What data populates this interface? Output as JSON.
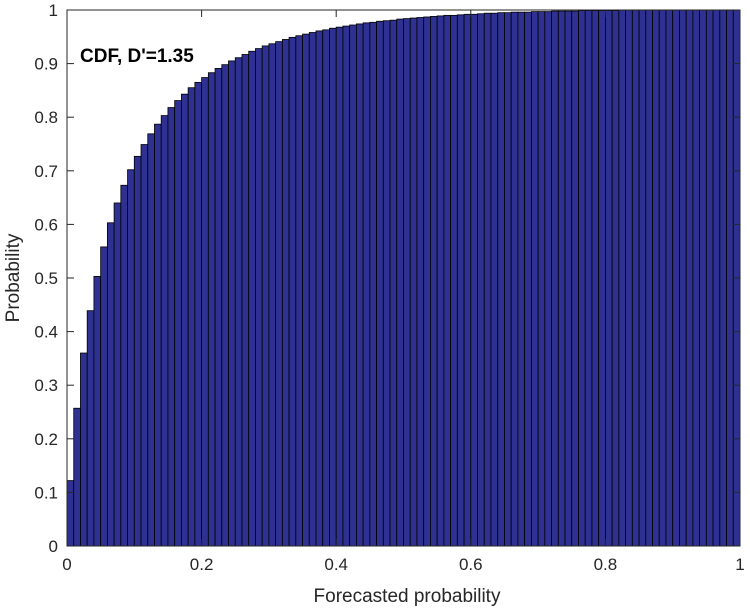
{
  "chart_data": {
    "type": "bar",
    "annotation": "CDF, D'=1.35",
    "xlabel": "Forecasted probability",
    "ylabel": "Probability",
    "xlim": [
      0,
      1
    ],
    "ylim": [
      0,
      1
    ],
    "x_ticks": [
      "0",
      "0.2",
      "0.4",
      "0.6",
      "0.8",
      "1"
    ],
    "y_ticks": [
      "0",
      "0.1",
      "0.2",
      "0.3",
      "0.4",
      "0.5",
      "0.6",
      "0.7",
      "0.8",
      "0.9",
      "1"
    ],
    "grid": false,
    "bar_color": "#2e3192",
    "bar_edge_color": "#000000",
    "bin_width": 0.01,
    "x": [
      0.005,
      0.015,
      0.025,
      0.035,
      0.045,
      0.055,
      0.065,
      0.075,
      0.085,
      0.095,
      0.105,
      0.115,
      0.125,
      0.135,
      0.145,
      0.155,
      0.165,
      0.175,
      0.185,
      0.195,
      0.205,
      0.215,
      0.225,
      0.235,
      0.245,
      0.255,
      0.265,
      0.275,
      0.285,
      0.295,
      0.305,
      0.315,
      0.325,
      0.335,
      0.345,
      0.355,
      0.365,
      0.375,
      0.385,
      0.395,
      0.405,
      0.415,
      0.425,
      0.435,
      0.445,
      0.455,
      0.465,
      0.475,
      0.485,
      0.495,
      0.505,
      0.515,
      0.525,
      0.535,
      0.545,
      0.555,
      0.565,
      0.575,
      0.585,
      0.595,
      0.605,
      0.615,
      0.625,
      0.635,
      0.645,
      0.655,
      0.665,
      0.675,
      0.685,
      0.695,
      0.705,
      0.715,
      0.725,
      0.735,
      0.745,
      0.755,
      0.765,
      0.775,
      0.785,
      0.795,
      0.805,
      0.815,
      0.825,
      0.835,
      0.845,
      0.855,
      0.865,
      0.875,
      0.885,
      0.895,
      0.905,
      0.915,
      0.925,
      0.935,
      0.945,
      0.955,
      0.965,
      0.975,
      0.985,
      0.995
    ],
    "values": [
      0.122,
      0.257,
      0.36,
      0.439,
      0.503,
      0.558,
      0.603,
      0.64,
      0.673,
      0.702,
      0.727,
      0.749,
      0.769,
      0.787,
      0.803,
      0.818,
      0.831,
      0.843,
      0.855,
      0.865,
      0.874,
      0.883,
      0.891,
      0.898,
      0.905,
      0.911,
      0.917,
      0.923,
      0.928,
      0.933,
      0.937,
      0.941,
      0.945,
      0.949,
      0.952,
      0.955,
      0.958,
      0.961,
      0.963,
      0.966,
      0.968,
      0.97,
      0.972,
      0.974,
      0.976,
      0.977,
      0.979,
      0.98,
      0.981,
      0.983,
      0.984,
      0.985,
      0.986,
      0.987,
      0.988,
      0.989,
      0.99,
      0.99,
      0.991,
      0.992,
      0.992,
      0.993,
      0.994,
      0.994,
      0.995,
      0.995,
      0.996,
      0.996,
      0.996,
      0.997,
      0.997,
      0.997,
      0.998,
      0.998,
      0.998,
      0.998,
      0.999,
      0.999,
      0.999,
      0.999,
      0.999,
      0.999,
      1.0,
      1.0,
      1.0,
      1.0,
      1.0,
      1.0,
      1.0,
      1.0,
      1.0,
      1.0,
      1.0,
      1.0,
      1.0,
      1.0,
      1.0,
      1.0,
      1.0,
      1.0
    ]
  }
}
